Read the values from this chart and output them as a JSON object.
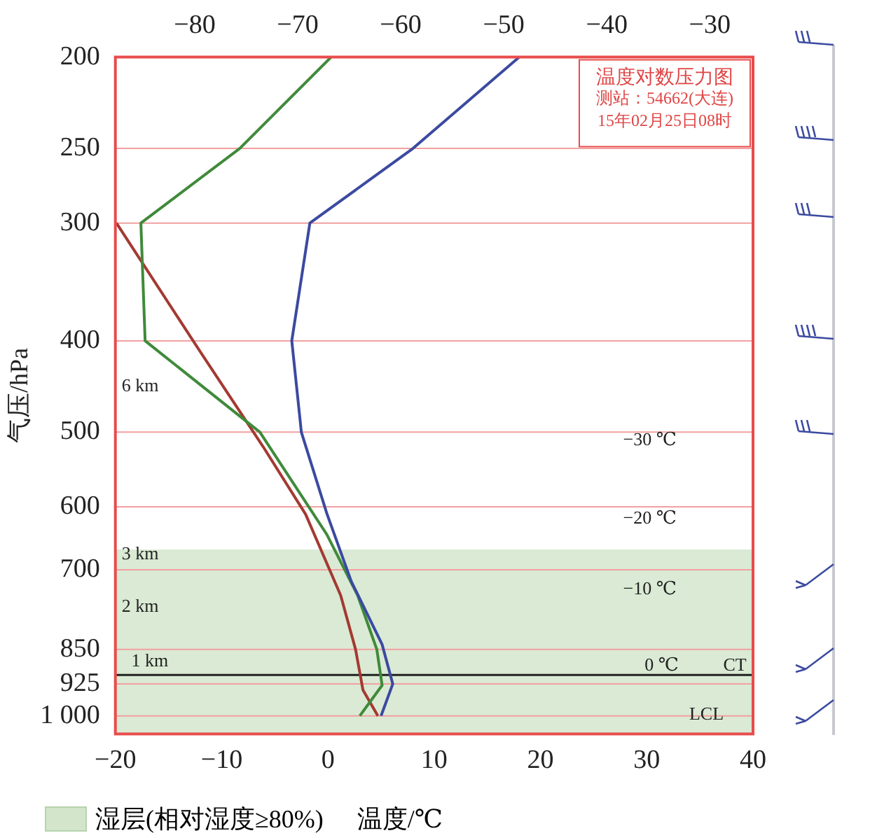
{
  "chart_data": {
    "type": "line",
    "title": "温度对数压力图",
    "xlabel": "温度/℃",
    "ylabel": "气压/hPa",
    "log": "y",
    "grid": "y",
    "marker": "none",
    "line_style": "solid",
    "legend": "bottom",
    "xlim": [
      -20,
      40
    ],
    "xticks": [
      -20,
      -10,
      0,
      10,
      20,
      30,
      40
    ],
    "x2lim": [
      -87.7,
      -25.8
    ],
    "x2ticks": [
      -80,
      -70,
      -60,
      -50,
      -40,
      -30
    ],
    "ylim": [
      1045,
      200
    ],
    "yticks": [
      200,
      250,
      300,
      400,
      500,
      600,
      700,
      850,
      925,
      {
        "value": 1000,
        "label": "1 000"
      }
    ],
    "series": [
      {
        "color": "#3b4aa0",
        "x": [
          18,
          8,
          -1.7,
          -3.4,
          -2.5,
          -0.1,
          2.2,
          5.1,
          6.1,
          5
        ],
        "values": [
          200,
          250,
          300,
          400,
          500,
          610,
          720,
          840,
          925,
          1000
        ]
      },
      {
        "color": "#3f8a3a",
        "x": [
          0.3,
          -8.3,
          -17.6,
          -17.2,
          -6.4,
          -0.1,
          2.8,
          4.6,
          5.1,
          3
        ],
        "values": [
          200,
          250,
          300,
          400,
          500,
          642,
          745,
          850,
          928,
          1000
        ]
      },
      {
        "color": "#a33a32",
        "x": [
          -19.9,
          -12,
          -6.1,
          -2.1,
          1.2,
          2.6,
          3.3,
          4.7
        ],
        "values": [
          300,
          411,
          518,
          611,
          745,
          850,
          939,
          1000
        ]
      }
    ],
    "bands": [
      {
        "axis": "y",
        "from": 1045,
        "to": 666,
        "label": "湿层(相对湿度≥80%)",
        "color": "#d3e6cc"
      }
    ],
    "ref_lines": [
      {
        "axis": "y",
        "value": 905,
        "label": "0 ℃",
        "color": "#222222"
      }
    ],
    "annotations": [
      "测站：54662(大连)",
      "15年02月25日08时",
      "6 km",
      "3 km",
      "2 km",
      "−30 ℃",
      "−20 ℃",
      "−10 ℃",
      "LCL",
      {
        "text": "1 km",
        "x": -18.5,
        "y": 896
      },
      {
        "text": "CT",
        "x": 37.2,
        "y": 905
      }
    ]
  }
}
